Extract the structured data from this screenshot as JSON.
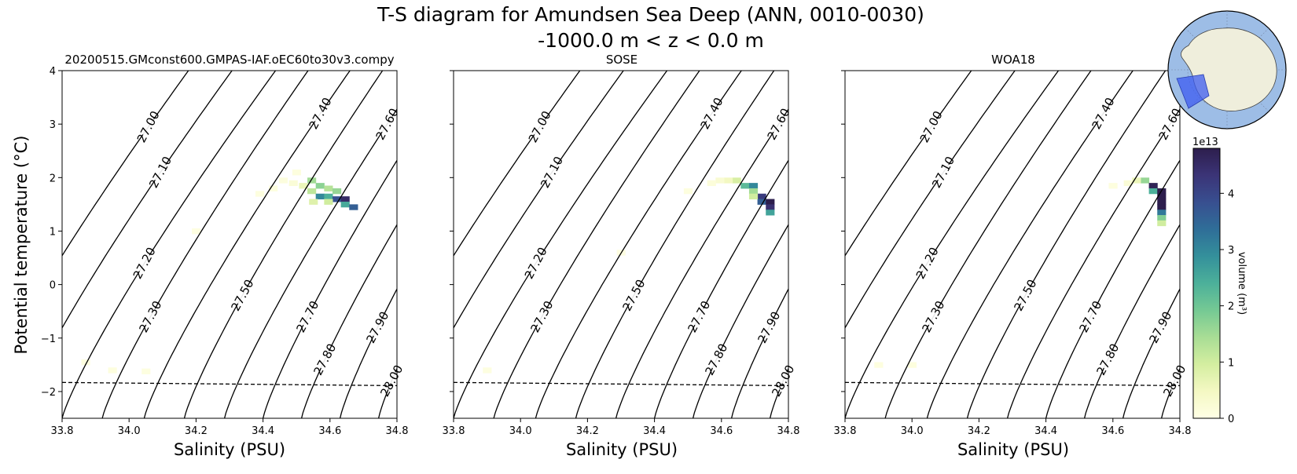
{
  "figure": {
    "title_line1": "T-S diagram for Amundsen Sea Deep (ANN, 0010-0030)",
    "title_line2": "-1000.0 m < z < 0.0 m",
    "ylabel": "Potential temperature (°C)",
    "xlabel": "Salinity (PSU)"
  },
  "colorbar": {
    "label": "volume (m³)",
    "multiplier": "1e13",
    "ticks": [
      "0",
      "1",
      "2",
      "3",
      "4"
    ],
    "range": [
      0,
      4.8
    ],
    "colors": [
      "#ffffe5",
      "#f4f8c3",
      "#d4eea0",
      "#a8dd95",
      "#75c994",
      "#4cb09a",
      "#34909b",
      "#2f6e98",
      "#384f90",
      "#3b3477",
      "#2d1e4d"
    ]
  },
  "inset_map": {
    "ocean_color": "#9dbde6",
    "land_color": "#efeedc",
    "region_color": "#3d5cf0"
  },
  "chart_data": [
    {
      "type": "heatmap",
      "title": "20200515.GMconst600.GMPAS-IAF.oEC60to30v3.compy",
      "xlabel": "Salinity (PSU)",
      "ylabel": "Potential temperature (°C)",
      "xlim": [
        33.8,
        34.8
      ],
      "ylim": [
        -2.5,
        4.0
      ],
      "xticks": [
        "33.8",
        "34.0",
        "34.2",
        "34.4",
        "34.6",
        "34.8"
      ],
      "yticks": [
        "−2",
        "−1",
        "0",
        "1",
        "2",
        "3",
        "4"
      ],
      "freezing_line": [
        [
          33.8,
          -1.83
        ],
        [
          34.8,
          -1.89
        ]
      ],
      "density_contours": [
        "27.00",
        "27.10",
        "27.20",
        "27.30",
        "27.40",
        "27.50",
        "27.60",
        "27.70",
        "27.80",
        "27.90",
        "28.00"
      ],
      "cells": [
        [
          34.545,
          1.95,
          1.5
        ],
        [
          34.57,
          1.85,
          1.7
        ],
        [
          34.595,
          1.8,
          1.3
        ],
        [
          34.545,
          1.75,
          1.2
        ],
        [
          34.57,
          1.65,
          3.0
        ],
        [
          34.595,
          1.65,
          2.4
        ],
        [
          34.62,
          1.75,
          1.6
        ],
        [
          34.62,
          1.6,
          3.8
        ],
        [
          34.645,
          1.6,
          4.5
        ],
        [
          34.645,
          1.5,
          2.5
        ],
        [
          34.67,
          1.45,
          3.6
        ],
        [
          34.595,
          1.55,
          1.0
        ],
        [
          34.52,
          1.85,
          0.6
        ],
        [
          34.55,
          1.55,
          0.8
        ],
        [
          34.49,
          1.9,
          0.2
        ],
        [
          34.46,
          1.95,
          0.12
        ],
        [
          34.43,
          1.8,
          0.1
        ],
        [
          34.5,
          2.1,
          0.1
        ],
        [
          34.39,
          1.7,
          0.08
        ],
        [
          34.2,
          1.0,
          0.06
        ],
        [
          33.95,
          -1.6,
          0.1
        ],
        [
          33.87,
          -1.45,
          0.08
        ],
        [
          34.05,
          -1.62,
          0.07
        ]
      ]
    },
    {
      "type": "heatmap",
      "title": "SOSE",
      "xlabel": "Salinity (PSU)",
      "xlim": [
        33.8,
        34.8
      ],
      "ylim": [
        -2.5,
        4.0
      ],
      "xticks": [
        "33.8",
        "34.0",
        "34.2",
        "34.4",
        "34.6",
        "34.8"
      ],
      "freezing_line": [
        [
          33.8,
          -1.83
        ],
        [
          34.8,
          -1.89
        ]
      ],
      "density_contours": [
        "27.00",
        "27.10",
        "27.20",
        "27.30",
        "27.40",
        "27.50",
        "27.60",
        "27.70",
        "27.80",
        "27.90",
        "28.00"
      ],
      "cells": [
        [
          34.645,
          1.95,
          0.9
        ],
        [
          34.67,
          1.85,
          2.2
        ],
        [
          34.695,
          1.85,
          3.0
        ],
        [
          34.695,
          1.75,
          1.5
        ],
        [
          34.72,
          1.65,
          4.2
        ],
        [
          34.72,
          1.55,
          3.6
        ],
        [
          34.745,
          1.55,
          4.8
        ],
        [
          34.745,
          1.45,
          4.4
        ],
        [
          34.745,
          1.35,
          2.6
        ],
        [
          34.695,
          1.65,
          1.0
        ],
        [
          34.62,
          1.95,
          0.5
        ],
        [
          34.595,
          1.95,
          0.25
        ],
        [
          34.57,
          1.9,
          0.15
        ],
        [
          34.5,
          1.75,
          0.08
        ],
        [
          33.9,
          -1.6,
          0.07
        ],
        [
          34.3,
          0.6,
          0.05
        ]
      ]
    },
    {
      "type": "heatmap",
      "title": "WOA18",
      "xlabel": "Salinity (PSU)",
      "xlim": [
        33.8,
        34.8
      ],
      "ylim": [
        -2.5,
        4.0
      ],
      "xticks": [
        "33.8",
        "34.0",
        "34.2",
        "34.4",
        "34.6",
        "34.8"
      ],
      "freezing_line": [
        [
          33.8,
          -1.83
        ],
        [
          34.8,
          -1.89
        ]
      ],
      "density_contours": [
        "27.00",
        "27.10",
        "27.20",
        "27.30",
        "27.40",
        "27.50",
        "27.60",
        "27.70",
        "27.80",
        "27.90",
        "28.00"
      ],
      "cells": [
        [
          34.695,
          1.95,
          1.6
        ],
        [
          34.72,
          1.85,
          4.7
        ],
        [
          34.72,
          1.75,
          2.4
        ],
        [
          34.745,
          1.75,
          4.8
        ],
        [
          34.745,
          1.65,
          4.8
        ],
        [
          34.745,
          1.55,
          4.8
        ],
        [
          34.745,
          1.45,
          4.8
        ],
        [
          34.745,
          1.35,
          3.2
        ],
        [
          34.745,
          1.25,
          1.8
        ],
        [
          34.745,
          1.15,
          1.0
        ],
        [
          34.67,
          1.95,
          0.6
        ],
        [
          34.645,
          1.9,
          0.2
        ],
        [
          34.6,
          1.85,
          0.1
        ],
        [
          34.0,
          -1.5,
          0.1
        ],
        [
          33.9,
          -1.5,
          0.08
        ]
      ]
    }
  ]
}
